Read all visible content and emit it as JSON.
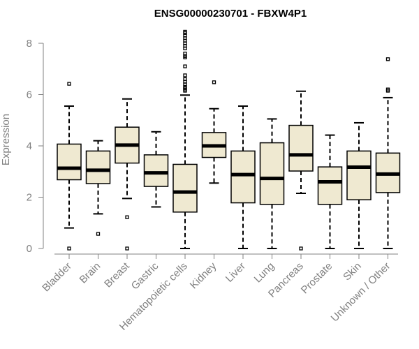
{
  "chart_data": {
    "type": "box",
    "title": "ENSG00000230701 - FBXW4P1",
    "xlabel": "",
    "ylabel": "Expression",
    "ylim": [
      0,
      8.5
    ],
    "yticks": [
      0,
      2,
      4,
      6,
      8
    ],
    "box_fill": "#efe9d1",
    "categories": [
      "Bladder",
      "Brain",
      "Breast",
      "Gastric",
      "Hematopoietic cells",
      "Kidney",
      "Liver",
      "Lung",
      "Pancreas",
      "Prostate",
      "Skin",
      "Unknown / Other"
    ],
    "series": [
      {
        "name": "Bladder",
        "min": 0.8,
        "q1": 2.68,
        "median": 3.13,
        "q3": 4.07,
        "max": 5.55,
        "outliers": [
          0.0,
          6.42
        ]
      },
      {
        "name": "Brain",
        "min": 1.35,
        "q1": 2.53,
        "median": 3.05,
        "q3": 3.8,
        "max": 4.2,
        "outliers": [
          0.57
        ]
      },
      {
        "name": "Breast",
        "min": 1.95,
        "q1": 3.33,
        "median": 4.03,
        "q3": 4.73,
        "max": 5.83,
        "outliers": [
          0.0,
          1.22
        ]
      },
      {
        "name": "Gastric",
        "min": 1.62,
        "q1": 2.42,
        "median": 2.95,
        "q3": 3.65,
        "max": 4.55,
        "outliers": []
      },
      {
        "name": "Hematopoietic cells",
        "min": 0.0,
        "q1": 1.42,
        "median": 2.2,
        "q3": 3.28,
        "max": 5.98,
        "outliers": [
          6.15,
          6.2,
          6.25,
          6.3,
          6.4,
          6.5,
          6.6,
          6.75,
          7.1,
          7.45,
          7.5,
          7.6,
          7.8,
          7.9,
          8.0,
          8.1,
          8.2,
          8.3,
          8.4,
          8.45
        ]
      },
      {
        "name": "Kidney",
        "min": 2.55,
        "q1": 3.55,
        "median": 4.0,
        "q3": 4.52,
        "max": 5.45,
        "outliers": [
          6.48
        ]
      },
      {
        "name": "Liver",
        "min": 0.0,
        "q1": 1.78,
        "median": 2.88,
        "q3": 3.8,
        "max": 5.55,
        "outliers": []
      },
      {
        "name": "Lung",
        "min": 0.0,
        "q1": 1.72,
        "median": 2.73,
        "q3": 4.12,
        "max": 5.05,
        "outliers": []
      },
      {
        "name": "Pancreas",
        "min": 2.15,
        "q1": 3.02,
        "median": 3.65,
        "q3": 4.8,
        "max": 6.13,
        "outliers": [
          0.0
        ]
      },
      {
        "name": "Prostate",
        "min": 0.0,
        "q1": 1.72,
        "median": 2.6,
        "q3": 3.18,
        "max": 4.42,
        "outliers": []
      },
      {
        "name": "Skin",
        "min": 0.0,
        "q1": 1.9,
        "median": 3.17,
        "q3": 3.8,
        "max": 4.9,
        "outliers": []
      },
      {
        "name": "Unknown / Other",
        "min": 0.0,
        "q1": 2.18,
        "median": 2.9,
        "q3": 3.72,
        "max": 5.88,
        "outliers": [
          6.15,
          6.2,
          7.38
        ]
      }
    ]
  }
}
